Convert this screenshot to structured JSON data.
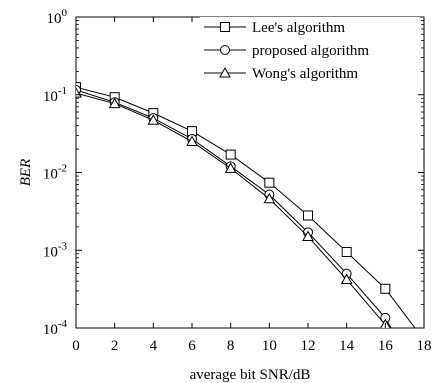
{
  "chart_data": {
    "type": "line",
    "xlabel": "average bit SNR/dB",
    "ylabel": "BER",
    "xlim": [
      0,
      18
    ],
    "ylim": [
      0.0001,
      1
    ],
    "yscale": "log",
    "grid": false,
    "legend_position": "top-right",
    "x_ticks": [
      "0",
      "2",
      "4",
      "6",
      "8",
      "10",
      "12",
      "14",
      "16",
      "18"
    ],
    "y_ticks": [
      {
        "base": "10",
        "exp": "0",
        "value": 1
      },
      {
        "base": "10",
        "exp": "-1",
        "value": 0.1
      },
      {
        "base": "10",
        "exp": "-2",
        "value": 0.01
      },
      {
        "base": "10",
        "exp": "-3",
        "value": 0.001
      },
      {
        "base": "10",
        "exp": "-4",
        "value": 0.0001
      }
    ],
    "series": [
      {
        "name": "Lee's algorithm",
        "marker": "square",
        "x": [
          0,
          2,
          4,
          6,
          8,
          10,
          12,
          14,
          16,
          18
        ],
        "y": [
          0.125,
          0.093,
          0.058,
          0.034,
          0.017,
          0.0074,
          0.0028,
          0.00095,
          0.00032,
          7e-05
        ]
      },
      {
        "name": "proposed algorithm",
        "marker": "circle",
        "x": [
          0,
          2,
          4,
          6,
          8,
          10,
          12,
          14,
          16,
          16.8
        ],
        "y": [
          0.115,
          0.08,
          0.05,
          0.027,
          0.012,
          0.0052,
          0.0017,
          0.0005,
          0.000135,
          6e-05
        ]
      },
      {
        "name": "Wong's algorithm",
        "marker": "triangle",
        "x": [
          0,
          2,
          4,
          6,
          8,
          10,
          12,
          14,
          16,
          16.7
        ],
        "y": [
          0.105,
          0.077,
          0.047,
          0.025,
          0.0113,
          0.0046,
          0.0015,
          0.00042,
          0.00011,
          6e-05
        ]
      }
    ]
  }
}
